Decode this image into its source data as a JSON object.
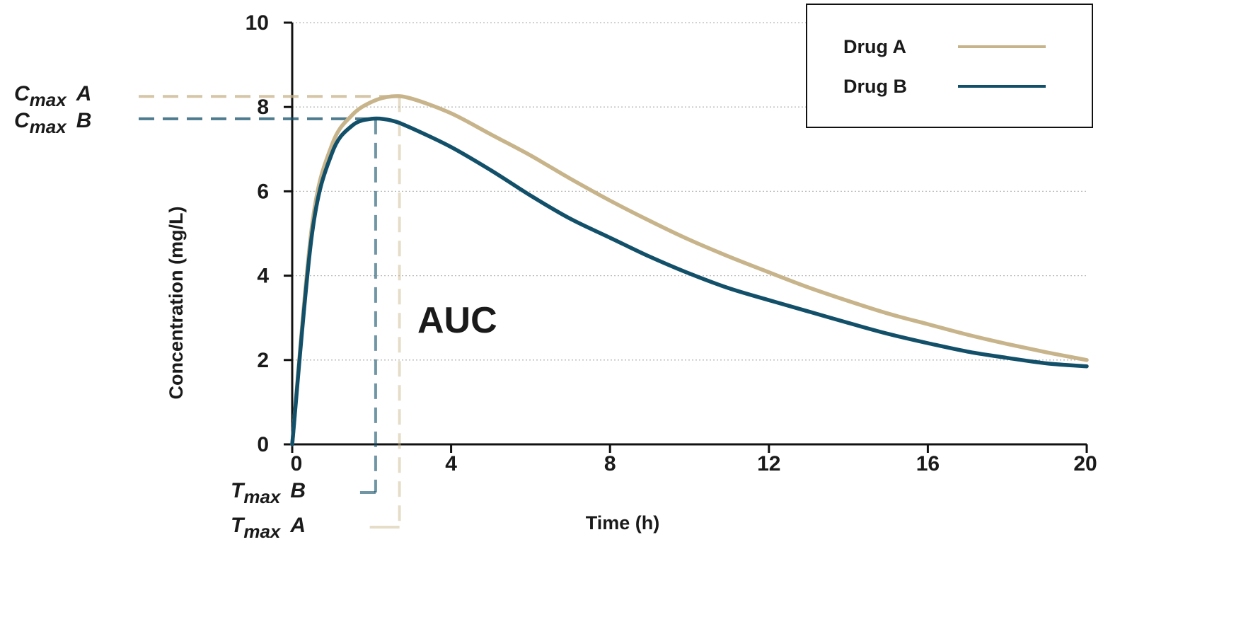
{
  "chart_data": {
    "type": "line",
    "xlabel": "Time  (h)",
    "ylabel": "Concentration (mg/L)",
    "xlim": [
      0,
      20
    ],
    "ylim": [
      0,
      10
    ],
    "x_ticks": [
      0,
      4,
      8,
      12,
      16,
      20
    ],
    "y_ticks": [
      0,
      2,
      4,
      6,
      8,
      10
    ],
    "grid": "horizontal dotted",
    "legend_position": "top-right",
    "series": [
      {
        "name": "Drug A",
        "color": "#c8b48a",
        "x": [
          0,
          0.5,
          1,
          1.5,
          2,
          2.5,
          3,
          4,
          5,
          6,
          7,
          8,
          9,
          10,
          11,
          12,
          13,
          14,
          15,
          16,
          17,
          18,
          19,
          20
        ],
        "y": [
          0,
          5.2,
          7.1,
          7.8,
          8.12,
          8.25,
          8.2,
          7.85,
          7.35,
          6.85,
          6.3,
          5.78,
          5.3,
          4.85,
          4.45,
          4.08,
          3.72,
          3.4,
          3.1,
          2.85,
          2.6,
          2.38,
          2.18,
          2.0
        ]
      },
      {
        "name": "Drug B",
        "color": "#12506a",
        "x": [
          0,
          0.5,
          1,
          1.5,
          2,
          2.5,
          3,
          4,
          5,
          6,
          7,
          8,
          9,
          10,
          11,
          12,
          13,
          14,
          15,
          16,
          17,
          18,
          19,
          20
        ],
        "y": [
          0,
          5.0,
          6.9,
          7.55,
          7.72,
          7.68,
          7.5,
          7.05,
          6.5,
          5.9,
          5.35,
          4.9,
          4.45,
          4.05,
          3.7,
          3.42,
          3.15,
          2.88,
          2.62,
          2.4,
          2.2,
          2.05,
          1.92,
          1.85
        ]
      }
    ],
    "annotations": [
      {
        "text": "AUC",
        "x": 4,
        "y": 3
      },
      {
        "main": "C",
        "sub": "max",
        "suffix": "A",
        "series": "Drug A",
        "axis": "y",
        "value": 8.25
      },
      {
        "main": "C",
        "sub": "max",
        "suffix": "B",
        "series": "Drug B",
        "axis": "y",
        "value": 7.72
      },
      {
        "main": "T",
        "sub": "max",
        "suffix": "B",
        "series": "Drug B",
        "axis": "x",
        "value": 2.1
      },
      {
        "main": "T",
        "sub": "max",
        "suffix": "A",
        "series": "Drug A",
        "axis": "x",
        "value": 2.7
      }
    ]
  }
}
